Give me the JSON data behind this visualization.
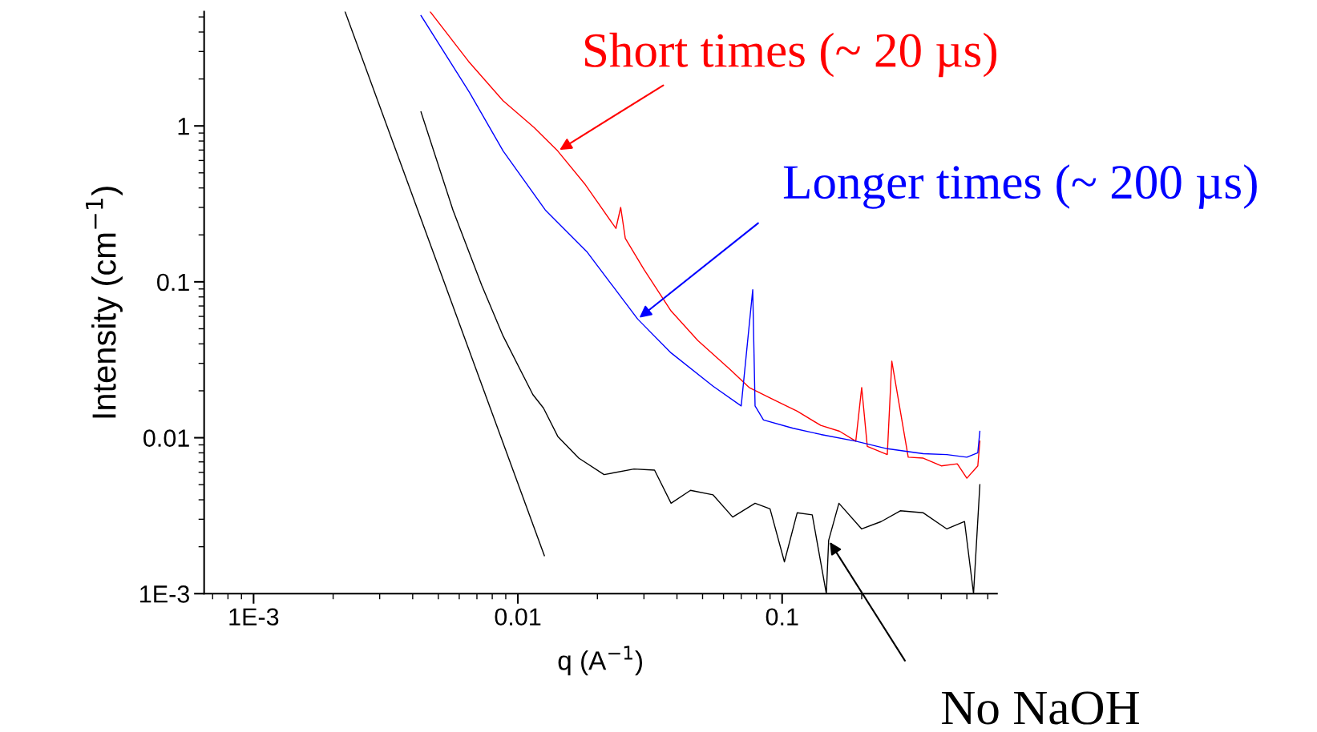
{
  "chart_data": {
    "type": "line",
    "xlabel": "q (A$^{−1}$)",
    "ylabel": "Intensity (cm$^{−1}$)",
    "log": "xy",
    "grid": false,
    "legend": false,
    "marker": "none",
    "line_style": "solid",
    "xlim": [
      0.00065,
      0.65
    ],
    "ylim": [
      0.001,
      5.4
    ],
    "xticks": [
      {
        "value": 0.001,
        "label": "1E-3"
      },
      0.01,
      0.1
    ],
    "yticks": [
      {
        "value": 0.001,
        "label": "1E-3"
      },
      0.01,
      0.1,
      1
    ],
    "series": [
      {
        "color": "#000000",
        "x": [
          0.00222,
          0.0126
        ],
        "values": [
          5.4,
          0.00175
        ]
      },
      {
        "color": "#ff0000",
        "x": [
          0.00466,
          0.0065,
          0.00879,
          0.0115,
          0.01416,
          0.018,
          0.0235,
          0.0245,
          0.0255,
          0.03,
          0.038,
          0.048,
          0.0635,
          0.075,
          0.09,
          0.114,
          0.14,
          0.165,
          0.19,
          0.2,
          0.21,
          0.25,
          0.26,
          0.3,
          0.342,
          0.4,
          0.46,
          0.5,
          0.55,
          0.56
        ],
        "values": [
          5.4,
          2.6,
          1.45,
          0.98,
          0.69,
          0.42,
          0.22,
          0.3,
          0.19,
          0.12,
          0.065,
          0.042,
          0.0274,
          0.021,
          0.018,
          0.0148,
          0.012,
          0.011,
          0.0095,
          0.021,
          0.0088,
          0.0078,
          0.031,
          0.0075,
          0.0074,
          0.0066,
          0.0068,
          0.0055,
          0.0066,
          0.0095
        ]
      },
      {
        "color": "#0000ff",
        "x": [
          0.0043,
          0.00656,
          0.0088,
          0.0127,
          0.0183,
          0.0284,
          0.038,
          0.0548,
          0.07,
          0.0774,
          0.079,
          0.085,
          0.11,
          0.14,
          0.19,
          0.25,
          0.342,
          0.42,
          0.5,
          0.55,
          0.56
        ],
        "values": [
          5.1,
          1.64,
          0.69,
          0.289,
          0.155,
          0.0577,
          0.035,
          0.0214,
          0.016,
          0.089,
          0.016,
          0.013,
          0.0115,
          0.0105,
          0.0095,
          0.0085,
          0.0079,
          0.0078,
          0.0075,
          0.008,
          0.011
        ]
      },
      {
        "color": "#000000",
        "x": [
          0.0043,
          0.00568,
          0.0073,
          0.00879,
          0.0114,
          0.0125,
          0.01416,
          0.017,
          0.0212,
          0.0275,
          0.0329,
          0.038,
          0.045,
          0.0548,
          0.065,
          0.079,
          0.09,
          0.102,
          0.114,
          0.13,
          0.147,
          0.15,
          0.164,
          0.2,
          0.237,
          0.28,
          0.342,
          0.42,
          0.49,
          0.53,
          0.56
        ],
        "values": [
          1.23,
          0.289,
          0.095,
          0.045,
          0.0189,
          0.0155,
          0.0102,
          0.0074,
          0.0058,
          0.0063,
          0.0062,
          0.0038,
          0.0046,
          0.0043,
          0.0031,
          0.0038,
          0.0035,
          0.0016,
          0.0033,
          0.0032,
          0.001,
          0.0022,
          0.0038,
          0.0026,
          0.0029,
          0.0034,
          0.0033,
          0.0026,
          0.0029,
          0.001,
          0.005
        ]
      }
    ],
    "annotations": [
      {
        "text": "Short times (~ 20 µs)",
        "x": 0.01416,
        "y": 0.69
      },
      {
        "text": "Longer times (~ 200 µs)",
        "x": 0.0284,
        "y": 0.0577
      },
      {
        "text": "No NaOH",
        "x": 0.15,
        "y": 0.0022
      }
    ]
  }
}
